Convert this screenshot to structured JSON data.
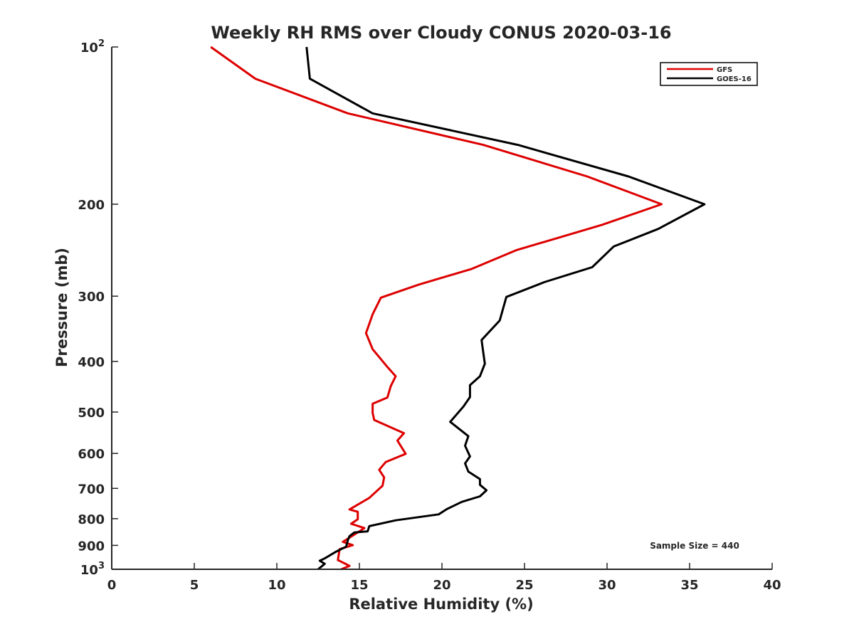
{
  "chart_data": {
    "type": "line",
    "title": "Weekly RH RMS over Cloudy CONUS 2020-03-16",
    "xlabel": "Relative Humidity (%)",
    "ylabel": "Pressure (mb)",
    "xlim": [
      0,
      40
    ],
    "ylim": [
      100,
      1000
    ],
    "y_scale": "log",
    "y_reversed": true,
    "grid": false,
    "legend_position": "top-right",
    "x_ticks": [
      0,
      5,
      10,
      15,
      20,
      25,
      30,
      35,
      40
    ],
    "x_tick_labels": [
      "0",
      "5",
      "10",
      "15",
      "20",
      "25",
      "30",
      "35",
      "40"
    ],
    "y_ticks": [
      100,
      200,
      300,
      400,
      500,
      600,
      700,
      800,
      900,
      1000
    ],
    "y_tick_labels": [
      {
        "base": "10",
        "exp": "2"
      },
      {
        "base": "200",
        "exp": ""
      },
      {
        "base": "300",
        "exp": ""
      },
      {
        "base": "400",
        "exp": ""
      },
      {
        "base": "500",
        "exp": ""
      },
      {
        "base": "600",
        "exp": ""
      },
      {
        "base": "700",
        "exp": ""
      },
      {
        "base": "800",
        "exp": ""
      },
      {
        "base": "900",
        "exp": ""
      },
      {
        "base": "10",
        "exp": "3"
      }
    ],
    "series": [
      {
        "name": "GFS",
        "color": "#dd0000",
        "points": [
          {
            "x": 6.0,
            "y": 100
          },
          {
            "x": 8.7,
            "y": 115
          },
          {
            "x": 14.3,
            "y": 134
          },
          {
            "x": 22.5,
            "y": 154
          },
          {
            "x": 28.8,
            "y": 177
          },
          {
            "x": 33.3,
            "y": 200
          },
          {
            "x": 29.7,
            "y": 219
          },
          {
            "x": 24.5,
            "y": 245
          },
          {
            "x": 21.8,
            "y": 266
          },
          {
            "x": 18.6,
            "y": 285
          },
          {
            "x": 16.3,
            "y": 302
          },
          {
            "x": 15.8,
            "y": 325
          },
          {
            "x": 15.4,
            "y": 353
          },
          {
            "x": 15.8,
            "y": 379
          },
          {
            "x": 16.7,
            "y": 410
          },
          {
            "x": 17.2,
            "y": 427
          },
          {
            "x": 16.9,
            "y": 446
          },
          {
            "x": 16.7,
            "y": 469
          },
          {
            "x": 15.8,
            "y": 482
          },
          {
            "x": 15.8,
            "y": 502
          },
          {
            "x": 15.9,
            "y": 518
          },
          {
            "x": 17.7,
            "y": 549
          },
          {
            "x": 17.3,
            "y": 567
          },
          {
            "x": 17.8,
            "y": 601
          },
          {
            "x": 16.6,
            "y": 623
          },
          {
            "x": 16.2,
            "y": 645
          },
          {
            "x": 16.5,
            "y": 667
          },
          {
            "x": 16.4,
            "y": 692
          },
          {
            "x": 15.6,
            "y": 730
          },
          {
            "x": 14.4,
            "y": 768
          },
          {
            "x": 14.9,
            "y": 776
          },
          {
            "x": 14.9,
            "y": 802
          },
          {
            "x": 14.5,
            "y": 818
          },
          {
            "x": 15.3,
            "y": 834
          },
          {
            "x": 14.5,
            "y": 866
          },
          {
            "x": 14.0,
            "y": 886
          },
          {
            "x": 14.6,
            "y": 899
          },
          {
            "x": 13.8,
            "y": 915
          },
          {
            "x": 13.7,
            "y": 960
          },
          {
            "x": 14.4,
            "y": 985
          },
          {
            "x": 13.9,
            "y": 1000
          }
        ]
      },
      {
        "name": "GOES-16",
        "color": "#000000",
        "points": [
          {
            "x": 11.8,
            "y": 100
          },
          {
            "x": 12.0,
            "y": 115
          },
          {
            "x": 15.8,
            "y": 134
          },
          {
            "x": 24.6,
            "y": 154
          },
          {
            "x": 31.3,
            "y": 177
          },
          {
            "x": 35.9,
            "y": 200
          },
          {
            "x": 33.1,
            "y": 223
          },
          {
            "x": 30.4,
            "y": 241
          },
          {
            "x": 29.1,
            "y": 264
          },
          {
            "x": 26.2,
            "y": 282
          },
          {
            "x": 23.9,
            "y": 301
          },
          {
            "x": 23.5,
            "y": 334
          },
          {
            "x": 22.4,
            "y": 364
          },
          {
            "x": 22.5,
            "y": 384
          },
          {
            "x": 22.6,
            "y": 404
          },
          {
            "x": 22.3,
            "y": 427
          },
          {
            "x": 21.7,
            "y": 444
          },
          {
            "x": 21.7,
            "y": 468
          },
          {
            "x": 21.3,
            "y": 488
          },
          {
            "x": 20.5,
            "y": 522
          },
          {
            "x": 21.6,
            "y": 556
          },
          {
            "x": 21.4,
            "y": 580
          },
          {
            "x": 21.7,
            "y": 608
          },
          {
            "x": 21.4,
            "y": 627
          },
          {
            "x": 21.6,
            "y": 650
          },
          {
            "x": 22.3,
            "y": 672
          },
          {
            "x": 22.3,
            "y": 689
          },
          {
            "x": 22.7,
            "y": 706
          },
          {
            "x": 22.3,
            "y": 725
          },
          {
            "x": 21.2,
            "y": 743
          },
          {
            "x": 20.3,
            "y": 767
          },
          {
            "x": 19.8,
            "y": 785
          },
          {
            "x": 17.2,
            "y": 806
          },
          {
            "x": 15.6,
            "y": 827
          },
          {
            "x": 15.5,
            "y": 846
          },
          {
            "x": 14.7,
            "y": 850
          },
          {
            "x": 14.4,
            "y": 864
          },
          {
            "x": 14.3,
            "y": 879
          },
          {
            "x": 14.2,
            "y": 905
          },
          {
            "x": 13.6,
            "y": 925
          },
          {
            "x": 12.9,
            "y": 953
          },
          {
            "x": 12.6,
            "y": 963
          },
          {
            "x": 12.9,
            "y": 976
          },
          {
            "x": 12.5,
            "y": 1000
          }
        ]
      }
    ],
    "annotations": [
      {
        "text": "Sample Size = 440"
      }
    ]
  }
}
